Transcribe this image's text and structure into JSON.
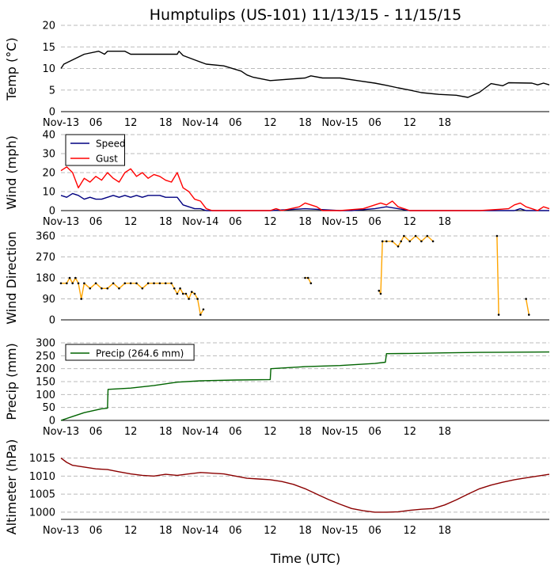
{
  "title": "Humptulips (US-101) 11/13/15 - 11/15/15",
  "xlabel": "Time (UTC)",
  "x_tick_labels": [
    "Nov-13",
    "06",
    "12",
    "18",
    "Nov-14",
    "06",
    "12",
    "18",
    "Nov-15",
    "06",
    "12",
    "18"
  ],
  "colors": {
    "temp": "#000000",
    "speed": "#000080",
    "gust": "#ff0000",
    "direction": "#ffa500",
    "precip": "#006400",
    "altimeter": "#8b0000"
  },
  "chart_data": [
    {
      "type": "line",
      "ylabel": "Temp (°C)",
      "ylim": [
        0,
        20
      ],
      "yticks": [
        0,
        5,
        10,
        15,
        20
      ],
      "grid": true,
      "series": [
        {
          "values": [
            [
              0,
              10.0
            ],
            [
              0.5,
              11
            ],
            [
              2,
              12
            ],
            [
              4,
              13.3
            ],
            [
              6.5,
              14
            ],
            [
              7.5,
              13.3
            ],
            [
              8,
              14
            ],
            [
              11,
              14
            ],
            [
              12,
              13.3
            ],
            [
              20,
              13.3
            ],
            [
              20.3,
              14
            ],
            [
              21,
              13
            ],
            [
              23,
              12
            ],
            [
              25,
              11
            ],
            [
              28,
              10.6
            ],
            [
              31,
              9.4
            ],
            [
              32,
              8.5
            ],
            [
              33,
              8
            ],
            [
              36,
              7.2
            ],
            [
              42,
              7.8
            ],
            [
              43,
              8.3
            ],
            [
              45,
              7.8
            ],
            [
              48,
              7.8
            ],
            [
              51,
              7.2
            ],
            [
              54,
              6.6
            ],
            [
              56,
              6.1
            ],
            [
              58,
              5.5
            ],
            [
              60,
              5
            ],
            [
              62,
              4.4
            ],
            [
              65,
              4.0
            ],
            [
              68,
              3.8
            ],
            [
              70,
              3.3
            ],
            [
              72,
              4.5
            ],
            [
              73,
              5.5
            ],
            [
              74,
              6.5
            ],
            [
              76,
              6
            ],
            [
              77,
              6.7
            ],
            [
              81,
              6.6
            ],
            [
              82,
              6.2
            ],
            [
              83,
              6.6
            ],
            [
              84,
              6.2
            ]
          ]
        }
      ]
    },
    {
      "type": "line",
      "ylabel": "Wind (mph)",
      "ylim": [
        0,
        40
      ],
      "yticks": [
        0,
        10,
        20,
        30,
        40
      ],
      "grid": true,
      "legend": "top-left",
      "series": [
        {
          "name": "Speed",
          "values": [
            [
              0,
              8
            ],
            [
              1,
              7
            ],
            [
              2,
              9
            ],
            [
              3,
              8
            ],
            [
              4,
              6
            ],
            [
              5,
              7
            ],
            [
              6,
              6
            ],
            [
              7,
              6
            ],
            [
              8,
              7
            ],
            [
              9,
              8
            ],
            [
              10,
              7
            ],
            [
              11,
              8
            ],
            [
              12,
              7
            ],
            [
              13,
              8
            ],
            [
              14,
              7
            ],
            [
              15,
              8
            ],
            [
              16,
              8
            ],
            [
              17,
              8
            ],
            [
              18,
              7
            ],
            [
              19,
              7
            ],
            [
              20,
              7
            ],
            [
              21,
              3
            ],
            [
              22,
              2
            ],
            [
              23,
              1
            ],
            [
              24,
              1
            ],
            [
              25,
              0
            ],
            [
              30,
              0
            ],
            [
              36,
              0
            ],
            [
              42,
              1
            ],
            [
              48,
              0
            ],
            [
              50,
              0
            ],
            [
              54,
              1
            ],
            [
              56,
              2
            ],
            [
              60,
              0
            ],
            [
              66,
              0
            ],
            [
              72,
              0
            ],
            [
              78,
              0
            ],
            [
              79,
              1
            ],
            [
              80,
              0
            ],
            [
              84,
              0
            ]
          ]
        },
        {
          "name": "Gust",
          "values": [
            [
              0,
              21
            ],
            [
              1,
              23
            ],
            [
              2,
              20
            ],
            [
              3,
              12
            ],
            [
              4,
              17
            ],
            [
              5,
              15
            ],
            [
              6,
              18
            ],
            [
              7,
              16
            ],
            [
              8,
              20
            ],
            [
              9,
              17
            ],
            [
              10,
              15
            ],
            [
              11,
              20
            ],
            [
              12,
              22
            ],
            [
              13,
              18
            ],
            [
              14,
              20
            ],
            [
              15,
              17
            ],
            [
              16,
              19
            ],
            [
              17,
              18
            ],
            [
              18,
              16
            ],
            [
              19,
              15
            ],
            [
              20,
              20
            ],
            [
              21,
              12
            ],
            [
              22,
              10
            ],
            [
              23,
              6
            ],
            [
              24,
              5
            ],
            [
              25,
              1
            ],
            [
              26,
              0
            ],
            [
              36,
              0
            ],
            [
              37,
              1
            ],
            [
              38,
              0
            ],
            [
              41,
              2
            ],
            [
              42,
              4
            ],
            [
              43,
              3
            ],
            [
              44,
              2
            ],
            [
              45,
              0
            ],
            [
              48,
              0
            ],
            [
              52,
              1
            ],
            [
              54,
              3
            ],
            [
              55,
              4
            ],
            [
              56,
              3
            ],
            [
              57,
              5
            ],
            [
              58,
              2
            ],
            [
              59,
              1
            ],
            [
              60,
              0
            ],
            [
              66,
              0
            ],
            [
              72,
              0
            ],
            [
              77,
              1
            ],
            [
              78,
              3
            ],
            [
              79,
              4
            ],
            [
              80,
              2
            ],
            [
              81,
              1
            ],
            [
              82,
              0
            ],
            [
              83,
              2
            ],
            [
              84,
              1
            ]
          ]
        }
      ]
    },
    {
      "type": "line",
      "ylabel": "Wind Direction",
      "ylim": [
        0,
        360
      ],
      "yticks": [
        0,
        90,
        180,
        270,
        360
      ],
      "grid": true,
      "series": [
        {
          "values": [
            [
              0,
              157
            ],
            [
              1,
              157
            ],
            [
              1.5,
              180
            ],
            [
              2,
              157
            ],
            [
              2.5,
              180
            ],
            [
              3,
              157
            ],
            [
              3.5,
              90
            ],
            [
              4,
              157
            ],
            [
              5,
              135
            ],
            [
              6,
              157
            ],
            [
              7,
              135
            ],
            [
              8,
              135
            ],
            [
              9,
              157
            ],
            [
              10,
              135
            ],
            [
              11,
              157
            ],
            [
              12,
              157
            ],
            [
              13,
              157
            ],
            [
              14,
              135
            ],
            [
              15,
              157
            ],
            [
              16,
              157
            ],
            [
              17,
              157
            ],
            [
              18,
              157
            ],
            [
              19,
              157
            ],
            [
              19.5,
              135
            ],
            [
              20,
              112
            ],
            [
              20.5,
              135
            ],
            [
              21,
              112
            ],
            [
              21.5,
              112
            ],
            [
              22,
              90
            ],
            [
              22.5,
              120
            ],
            [
              23,
              112
            ],
            [
              23.5,
              90
            ],
            [
              24,
              22
            ],
            [
              24.5,
              45
            ]
          ]
        },
        {
          "values": [
            [
              42,
              180
            ],
            [
              42.5,
              180
            ],
            [
              43,
              157
            ]
          ]
        },
        {
          "values": [
            [
              54.7,
              125
            ],
            [
              55,
              112
            ],
            [
              55.3,
              337
            ],
            [
              56,
              337
            ],
            [
              57,
              337
            ],
            [
              58,
              315
            ],
            [
              58.5,
              337
            ],
            [
              59,
              360
            ],
            [
              60,
              337
            ],
            [
              61,
              360
            ],
            [
              62,
              337
            ],
            [
              63,
              360
            ],
            [
              64,
              337
            ]
          ]
        },
        {
          "values": [
            [
              75,
              360
            ],
            [
              75.3,
              22
            ]
          ]
        },
        {
          "values": [
            [
              80,
              90
            ],
            [
              80.5,
              22
            ]
          ]
        }
      ]
    },
    {
      "type": "line",
      "ylabel": "Precip (mm)",
      "ylim": [
        0,
        300
      ],
      "yticks": [
        0,
        50,
        100,
        150,
        200,
        250,
        300
      ],
      "grid": true,
      "legend": "top-left",
      "series": [
        {
          "name": "Precip (264.6 mm)",
          "values": [
            [
              0,
              0
            ],
            [
              2,
              15
            ],
            [
              4,
              30
            ],
            [
              6,
              40
            ],
            [
              7,
              45
            ],
            [
              8,
              47
            ],
            [
              8.1,
              120
            ],
            [
              12,
              125
            ],
            [
              16,
              135
            ],
            [
              20,
              148
            ],
            [
              24,
              153
            ],
            [
              30,
              156
            ],
            [
              36,
              158
            ],
            [
              36.1,
              200
            ],
            [
              42,
              208
            ],
            [
              48,
              212
            ],
            [
              54,
              220
            ],
            [
              55.8,
              225
            ],
            [
              56,
              258
            ],
            [
              60,
              259
            ],
            [
              66,
              261
            ],
            [
              72,
              263
            ],
            [
              84,
              264.6
            ]
          ]
        }
      ]
    },
    {
      "type": "line",
      "ylabel": "Altimeter (hPa)",
      "ylim": [
        998,
        1016
      ],
      "yticks": [
        1000,
        1005,
        1010,
        1015
      ],
      "grid": true,
      "series": [
        {
          "values": [
            [
              0,
              1015
            ],
            [
              1,
              1013.8
            ],
            [
              2,
              1013
            ],
            [
              4,
              1012.5
            ],
            [
              6,
              1012
            ],
            [
              8,
              1011.8
            ],
            [
              10,
              1011.2
            ],
            [
              12,
              1010.6
            ],
            [
              14,
              1010.2
            ],
            [
              16,
              1010
            ],
            [
              18,
              1010.5
            ],
            [
              20,
              1010.2
            ],
            [
              22,
              1010.6
            ],
            [
              24,
              1011
            ],
            [
              26,
              1010.8
            ],
            [
              28,
              1010.6
            ],
            [
              30,
              1010
            ],
            [
              32,
              1009.4
            ],
            [
              34,
              1009.2
            ],
            [
              36,
              1009
            ],
            [
              38,
              1008.5
            ],
            [
              40,
              1007.7
            ],
            [
              42,
              1006.5
            ],
            [
              44,
              1005
            ],
            [
              46,
              1003.5
            ],
            [
              48,
              1002.2
            ],
            [
              50,
              1001
            ],
            [
              52,
              1000.4
            ],
            [
              54,
              1000
            ],
            [
              56,
              1000
            ],
            [
              58,
              1000.1
            ],
            [
              60,
              1000.5
            ],
            [
              62,
              1000.8
            ],
            [
              64,
              1001
            ],
            [
              66,
              1002
            ],
            [
              68,
              1003.4
            ],
            [
              70,
              1005
            ],
            [
              72,
              1006.5
            ],
            [
              74,
              1007.5
            ],
            [
              76,
              1008.3
            ],
            [
              78,
              1009
            ],
            [
              80,
              1009.5
            ],
            [
              82,
              1010
            ],
            [
              84,
              1010.5
            ]
          ]
        }
      ]
    }
  ]
}
